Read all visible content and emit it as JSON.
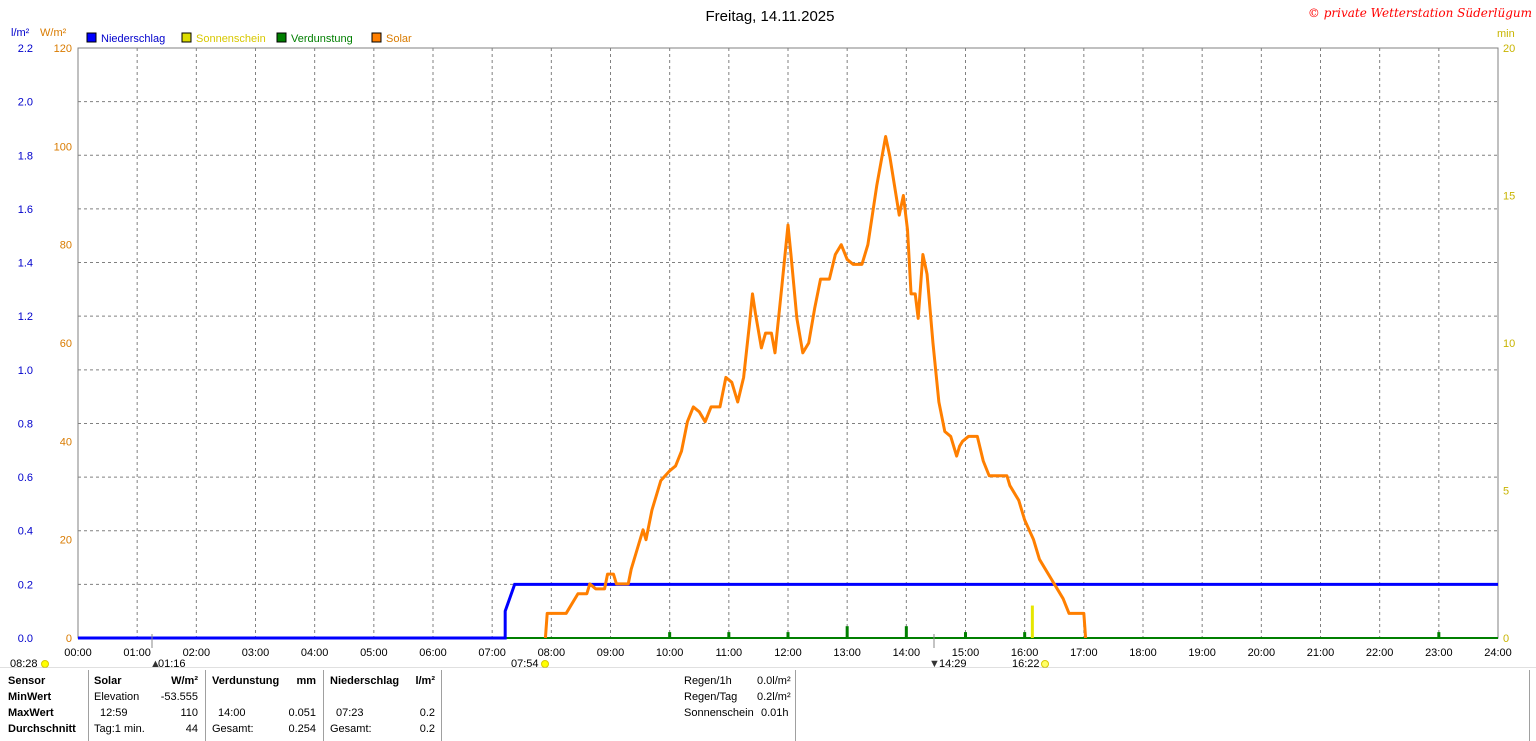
{
  "title": "Freitag, 14.11.2025",
  "copyright": "© private Wetterstation Süderlügum",
  "colors": {
    "niederschlag": "#0000ff",
    "sonnenschein": "#ffff00",
    "verdunstung": "#007f00",
    "solar": "#ff7f00",
    "axis_left1": "#0000cc",
    "axis_left2": "#d97b00",
    "axis_right": "#c8b400",
    "grid": "#808080"
  },
  "axes": {
    "left1_unit": "l/m²",
    "left2_unit": "W/m²",
    "right_unit": "min",
    "left1_ticks": [
      "2.2",
      "2.0",
      "1.8",
      "1.6",
      "1.4",
      "1.2",
      "1.0",
      "0.8",
      "0.6",
      "0.4",
      "0.2",
      "0.0"
    ],
    "left2_ticks": [
      "120",
      "100",
      "80",
      "60",
      "40",
      "20",
      "0"
    ],
    "right_ticks": [
      "20",
      "15",
      "10",
      "5",
      "0"
    ],
    "x_ticks": [
      "00:00",
      "01:00",
      "02:00",
      "03:00",
      "04:00",
      "05:00",
      "06:00",
      "07:00",
      "08:00",
      "09:00",
      "10:00",
      "11:00",
      "12:00",
      "13:00",
      "14:00",
      "15:00",
      "16:00",
      "17:00",
      "18:00",
      "19:00",
      "20:00",
      "21:00",
      "22:00",
      "23:00",
      "24:00"
    ]
  },
  "chart_data": {
    "type": "line",
    "title": "Freitag, 14.11.2025",
    "x_unit": "hour of day",
    "xlim": [
      0,
      24
    ],
    "legend": [
      "Niederschlag",
      "Sonnenschein",
      "Verdunstung",
      "Solar"
    ],
    "legend_position": "top-left",
    "grid": true,
    "series": [
      {
        "name": "Solar",
        "axis": "W/m²",
        "ylim": [
          0,
          120
        ],
        "points": [
          [
            7.9,
            0
          ],
          [
            7.93,
            5
          ],
          [
            8.25,
            5
          ],
          [
            8.35,
            7
          ],
          [
            8.45,
            9
          ],
          [
            8.6,
            9
          ],
          [
            8.65,
            11
          ],
          [
            8.75,
            10
          ],
          [
            8.9,
            10
          ],
          [
            8.95,
            13
          ],
          [
            9.05,
            13
          ],
          [
            9.1,
            11
          ],
          [
            9.3,
            11
          ],
          [
            9.35,
            14
          ],
          [
            9.45,
            18
          ],
          [
            9.55,
            22
          ],
          [
            9.6,
            20
          ],
          [
            9.7,
            26
          ],
          [
            9.85,
            32
          ],
          [
            10.0,
            34
          ],
          [
            10.1,
            35
          ],
          [
            10.2,
            38
          ],
          [
            10.3,
            44
          ],
          [
            10.4,
            47
          ],
          [
            10.5,
            46
          ],
          [
            10.6,
            44
          ],
          [
            10.7,
            47
          ],
          [
            10.85,
            47
          ],
          [
            10.95,
            53
          ],
          [
            11.05,
            52
          ],
          [
            11.15,
            48
          ],
          [
            11.25,
            53
          ],
          [
            11.35,
            64
          ],
          [
            11.4,
            70
          ],
          [
            11.45,
            66
          ],
          [
            11.55,
            59
          ],
          [
            11.62,
            62
          ],
          [
            11.72,
            62
          ],
          [
            11.78,
            58
          ],
          [
            11.9,
            72
          ],
          [
            12.0,
            84
          ],
          [
            12.05,
            78
          ],
          [
            12.15,
            65
          ],
          [
            12.25,
            58
          ],
          [
            12.35,
            60
          ],
          [
            12.45,
            67
          ],
          [
            12.55,
            73
          ],
          [
            12.7,
            73
          ],
          [
            12.8,
            78
          ],
          [
            12.9,
            80
          ],
          [
            13.0,
            77
          ],
          [
            13.1,
            76
          ],
          [
            13.25,
            76
          ],
          [
            13.35,
            80
          ],
          [
            13.5,
            92
          ],
          [
            13.65,
            102
          ],
          [
            13.72,
            98
          ],
          [
            13.8,
            92
          ],
          [
            13.88,
            86
          ],
          [
            13.95,
            90
          ],
          [
            14.02,
            83
          ],
          [
            14.08,
            70
          ],
          [
            14.15,
            70
          ],
          [
            14.2,
            65
          ],
          [
            14.28,
            78
          ],
          [
            14.35,
            74
          ],
          [
            14.45,
            60
          ],
          [
            14.55,
            48
          ],
          [
            14.65,
            42
          ],
          [
            14.75,
            41
          ],
          [
            14.85,
            37
          ],
          [
            14.9,
            39
          ],
          [
            14.95,
            40
          ],
          [
            15.05,
            41
          ],
          [
            15.2,
            41
          ],
          [
            15.3,
            36
          ],
          [
            15.4,
            33
          ],
          [
            15.55,
            33
          ],
          [
            15.7,
            33
          ],
          [
            15.75,
            31
          ],
          [
            15.9,
            28
          ],
          [
            16.0,
            24
          ],
          [
            16.15,
            20
          ],
          [
            16.25,
            16
          ],
          [
            16.35,
            14
          ],
          [
            16.45,
            12
          ],
          [
            16.55,
            10
          ],
          [
            16.65,
            8
          ],
          [
            16.75,
            5
          ],
          [
            17.0,
            5
          ],
          [
            17.03,
            0
          ]
        ]
      },
      {
        "name": "Niederschlag",
        "axis": "l/m²",
        "ylim": [
          0,
          2.2
        ],
        "points": [
          [
            0,
            0
          ],
          [
            7.22,
            0
          ],
          [
            7.22,
            0.1
          ],
          [
            7.38,
            0.2
          ],
          [
            24,
            0.2
          ]
        ]
      },
      {
        "name": "Verdunstung",
        "axis": "min",
        "ylim": [
          0,
          20
        ],
        "bars": [
          [
            10.0,
            0.2
          ],
          [
            11.0,
            0.2
          ],
          [
            12.0,
            0.2
          ],
          [
            13.0,
            0.4
          ],
          [
            14.0,
            0.4
          ],
          [
            15.0,
            0.2
          ],
          [
            16.0,
            0.2
          ],
          [
            23.0,
            0.2
          ]
        ]
      },
      {
        "name": "Sonnenschein",
        "axis": "min",
        "ylim": [
          0,
          20
        ],
        "bars": [
          [
            16.13,
            1.1
          ]
        ]
      }
    ]
  },
  "markers": {
    "sunrise_left": "08:28",
    "low_marker": "01:16",
    "sunrise": "07:54",
    "high_marker": "14:29",
    "sunset": "16:22"
  },
  "table": {
    "header": {
      "sensor": "Sensor",
      "solar": "Solar",
      "solar_unit": "W/m²",
      "verdunstung": "Verdunstung",
      "verdunstung_unit": "mm",
      "niederschlag": "Niederschlag",
      "niederschlag_unit": "l/m²"
    },
    "rows": [
      {
        "label": "MinWert",
        "solar_a": "Elevation",
        "solar_b": "-53.555",
        "verd_a": "",
        "verd_b": "",
        "nied_a": "",
        "nied_b": ""
      },
      {
        "label": "MaxWert",
        "solar_a": "12:59",
        "solar_b": "110",
        "verd_a": "14:00",
        "verd_b": "0.051",
        "nied_a": "07:23",
        "nied_b": "0.2"
      },
      {
        "label": "Durchschnitt",
        "solar_a": "Tag:1 min.",
        "solar_b": "44",
        "verd_a": "Gesamt:",
        "verd_b": "0.254",
        "nied_a": "Gesamt:",
        "nied_b": "0.2"
      }
    ],
    "summary": [
      {
        "label": "Regen/1h",
        "value": "0.0l/m²"
      },
      {
        "label": "Regen/Tag",
        "value": "0.2l/m²"
      },
      {
        "label": "Sonnenschein",
        "value": "0.01h"
      }
    ]
  }
}
